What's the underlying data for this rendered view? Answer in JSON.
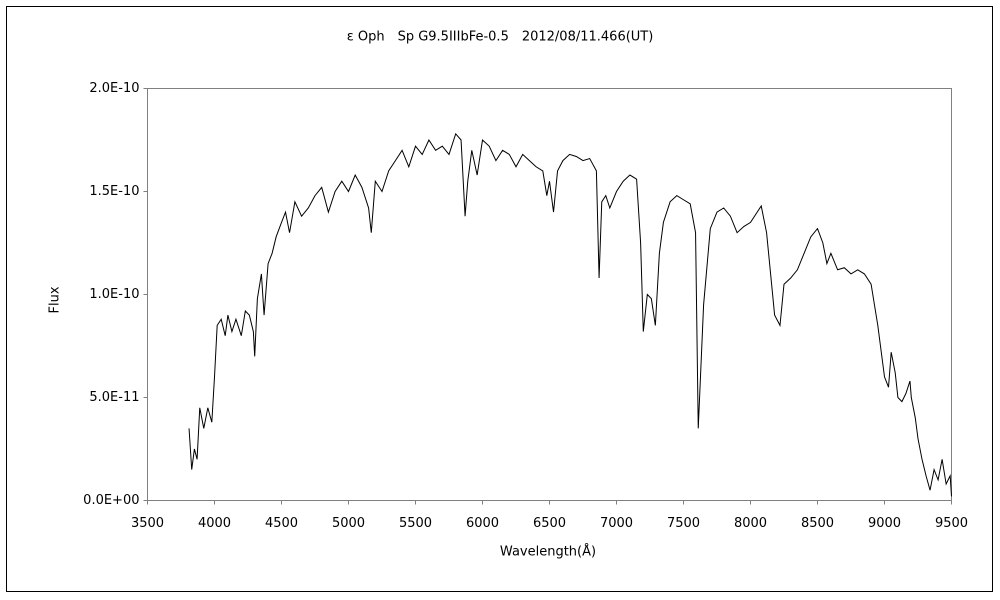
{
  "chart_data": {
    "type": "line",
    "title": "ε Oph　Sp G9.5IIIbFe-0.5　2012/08/11.466(UT)",
    "x_label": "Wavelength(Å)",
    "y_label": "Flux",
    "xlim": [
      3500,
      9500
    ],
    "xticks": [
      3500,
      4000,
      4500,
      5000,
      5500,
      6000,
      6500,
      7000,
      7500,
      8000,
      8500,
      9000,
      9500
    ],
    "ylim": [
      0,
      2e-10
    ],
    "yticks": [
      {
        "value": 0,
        "label": "0.0E+00"
      },
      {
        "value": 5e-11,
        "label": "5.0E-11"
      },
      {
        "value": 1e-10,
        "label": "1.0E-10"
      },
      {
        "value": 1.5e-10,
        "label": "1.5E-10"
      },
      {
        "value": 2e-10,
        "label": "2.0E-10"
      }
    ],
    "grid": false,
    "series": [
      {
        "color": "#000000",
        "x": [
          3810,
          3830,
          3850,
          3870,
          3890,
          3920,
          3950,
          3980,
          4000,
          4020,
          4050,
          4080,
          4100,
          4130,
          4160,
          4200,
          4230,
          4260,
          4290,
          4300,
          4320,
          4350,
          4370,
          4400,
          4430,
          4460,
          4500,
          4530,
          4560,
          4600,
          4650,
          4700,
          4750,
          4800,
          4850,
          4900,
          4950,
          5000,
          5050,
          5100,
          5150,
          5170,
          5200,
          5250,
          5300,
          5350,
          5400,
          5450,
          5500,
          5550,
          5600,
          5650,
          5700,
          5750,
          5800,
          5840,
          5870,
          5890,
          5920,
          5960,
          6000,
          6050,
          6100,
          6150,
          6200,
          6250,
          6300,
          6350,
          6400,
          6450,
          6480,
          6500,
          6530,
          6560,
          6600,
          6650,
          6700,
          6750,
          6800,
          6850,
          6870,
          6890,
          6920,
          6950,
          7000,
          7050,
          7100,
          7150,
          7180,
          7200,
          7230,
          7260,
          7290,
          7320,
          7350,
          7400,
          7450,
          7500,
          7550,
          7590,
          7610,
          7630,
          7650,
          7700,
          7750,
          7800,
          7850,
          7900,
          7950,
          8000,
          8050,
          8080,
          8120,
          8150,
          8180,
          8220,
          8250,
          8300,
          8350,
          8400,
          8450,
          8500,
          8540,
          8570,
          8600,
          8650,
          8700,
          8750,
          8800,
          8850,
          8900,
          8950,
          8980,
          9000,
          9030,
          9050,
          9080,
          9100,
          9130,
          9160,
          9190,
          9200,
          9230,
          9250,
          9280,
          9310,
          9340,
          9370,
          9400,
          9430,
          9460,
          9490,
          9500
        ],
        "values": [
          3.5e-11,
          1.5e-11,
          2.5e-11,
          2e-11,
          4.5e-11,
          3.5e-11,
          4.5e-11,
          3.8e-11,
          6e-11,
          8.5e-11,
          8.8e-11,
          8e-11,
          9e-11,
          8.2e-11,
          8.8e-11,
          8e-11,
          9.2e-11,
          9e-11,
          8.2e-11,
          7e-11,
          9.8e-11,
          1.1e-10,
          9e-11,
          1.15e-10,
          1.2e-10,
          1.28e-10,
          1.35e-10,
          1.4e-10,
          1.3e-10,
          1.45e-10,
          1.38e-10,
          1.42e-10,
          1.48e-10,
          1.52e-10,
          1.4e-10,
          1.5e-10,
          1.55e-10,
          1.5e-10,
          1.58e-10,
          1.52e-10,
          1.42e-10,
          1.3e-10,
          1.55e-10,
          1.5e-10,
          1.6e-10,
          1.65e-10,
          1.7e-10,
          1.62e-10,
          1.72e-10,
          1.68e-10,
          1.75e-10,
          1.7e-10,
          1.72e-10,
          1.68e-10,
          1.78e-10,
          1.75e-10,
          1.38e-10,
          1.55e-10,
          1.7e-10,
          1.58e-10,
          1.75e-10,
          1.72e-10,
          1.65e-10,
          1.7e-10,
          1.68e-10,
          1.62e-10,
          1.68e-10,
          1.65e-10,
          1.62e-10,
          1.6e-10,
          1.48e-10,
          1.55e-10,
          1.4e-10,
          1.6e-10,
          1.65e-10,
          1.68e-10,
          1.67e-10,
          1.65e-10,
          1.66e-10,
          1.6e-10,
          1.08e-10,
          1.45e-10,
          1.48e-10,
          1.42e-10,
          1.5e-10,
          1.55e-10,
          1.58e-10,
          1.56e-10,
          1.25e-10,
          8.2e-11,
          1e-10,
          9.8e-11,
          8.5e-11,
          1.2e-10,
          1.35e-10,
          1.45e-10,
          1.48e-10,
          1.46e-10,
          1.44e-10,
          1.3e-10,
          3.5e-11,
          6.5e-11,
          9.5e-11,
          1.32e-10,
          1.4e-10,
          1.42e-10,
          1.38e-10,
          1.3e-10,
          1.33e-10,
          1.35e-10,
          1.4e-10,
          1.43e-10,
          1.3e-10,
          1.1e-10,
          9e-11,
          8.5e-11,
          1.05e-10,
          1.08e-10,
          1.12e-10,
          1.2e-10,
          1.28e-10,
          1.32e-10,
          1.25e-10,
          1.15e-10,
          1.2e-10,
          1.12e-10,
          1.13e-10,
          1.1e-10,
          1.12e-10,
          1.1e-10,
          1.05e-10,
          8.5e-11,
          7e-11,
          6e-11,
          5.5e-11,
          7.2e-11,
          6.2e-11,
          5e-11,
          4.8e-11,
          5.2e-11,
          5.8e-11,
          5e-11,
          4e-11,
          3e-11,
          2e-11,
          1.2e-11,
          5e-12,
          1.5e-11,
          1e-11,
          2e-11,
          8e-12,
          1.2e-11,
          2e-12
        ]
      }
    ]
  }
}
